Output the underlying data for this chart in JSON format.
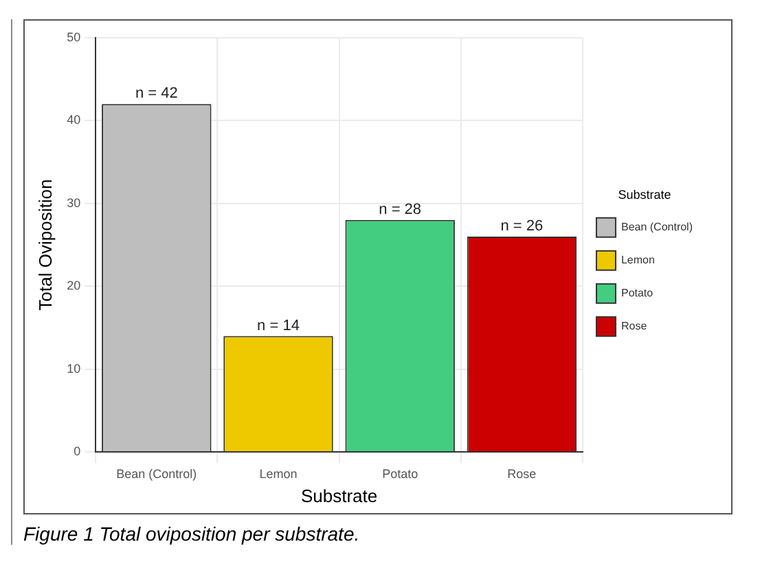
{
  "chart_data": {
    "type": "bar",
    "xlabel": "Substrate",
    "ylabel": "Total Oviposition",
    "legend_title": "Substrate",
    "categories": [
      "Bean (Control)",
      "Lemon",
      "Potato",
      "Rose"
    ],
    "series": [
      {
        "name": "Bean (Control)",
        "color": "#bebebe",
        "values": [
          42,
          null,
          null,
          null
        ],
        "value_labels": [
          "n = 42",
          null,
          null,
          null
        ]
      },
      {
        "name": "Lemon",
        "color": "#eec900",
        "values": [
          null,
          14,
          null,
          null
        ],
        "value_labels": [
          null,
          "n = 14",
          null,
          null
        ]
      },
      {
        "name": "Potato",
        "color": "#43cd80",
        "values": [
          null,
          null,
          28,
          null
        ],
        "value_labels": [
          null,
          null,
          "n = 28",
          null
        ]
      },
      {
        "name": "Rose",
        "color": "#cd0000",
        "values": [
          null,
          null,
          null,
          26
        ],
        "value_labels": [
          null,
          null,
          null,
          "n = 26"
        ]
      }
    ],
    "ylim": [
      0,
      50
    ],
    "yticks": [
      0,
      10,
      20,
      30,
      40,
      50
    ],
    "grid": true,
    "legend": "right",
    "annotations": [
      "Figure 1 Total oviposition per substrate."
    ]
  }
}
